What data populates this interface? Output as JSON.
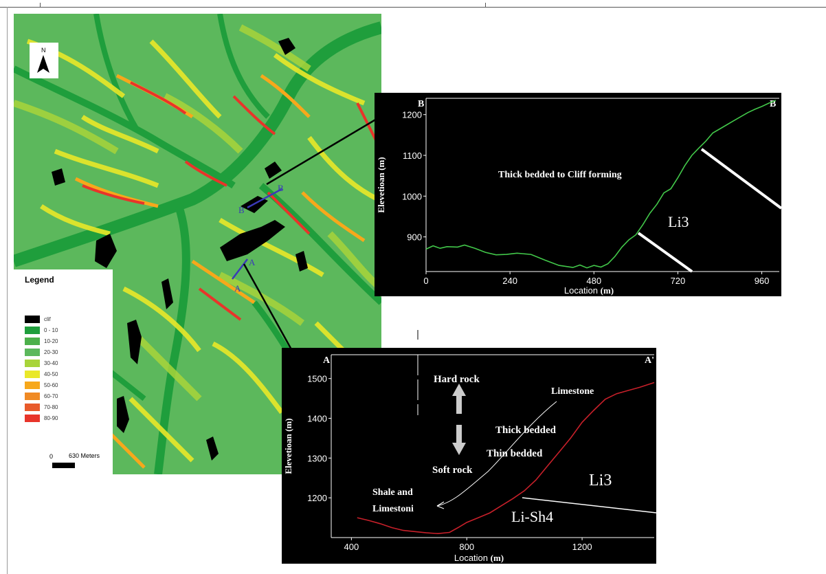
{
  "colors": {
    "cliff": "#000000",
    "green_dark": "#1f9e3c",
    "green": "#5cb85c",
    "green_light": "#8ccf3c",
    "yellow": "#e9e829",
    "orange": "#f7a81b",
    "red": "#e8342a",
    "profile_b_line": "#42c84a",
    "profile_a_line": "#c8202a",
    "section_line": "#3a3ab8"
  },
  "map": {
    "north_label": "N",
    "section_b_start": "B",
    "section_b_end": "B",
    "section_a_start": "A",
    "section_a_end": "A"
  },
  "legend": {
    "title": "Legend",
    "items": [
      {
        "label": "clif",
        "color": "#000000"
      },
      {
        "label": "0 - 10",
        "color": "#1f9e3c"
      },
      {
        "label": "10-20",
        "color": "#4cb04a"
      },
      {
        "label": "20-30",
        "color": "#5cb85c"
      },
      {
        "label": "30-40",
        "color": "#a8d43a"
      },
      {
        "label": "40-50",
        "color": "#e9e829"
      },
      {
        "label": "50-60",
        "color": "#f7a81b"
      },
      {
        "label": "60-70",
        "color": "#f08a24"
      },
      {
        "label": "70-80",
        "color": "#e85a2a"
      },
      {
        "label": "80-90",
        "color": "#e8342a"
      }
    ],
    "scale_zero": "0",
    "scale_label": "630 Meters"
  },
  "profiles": [
    {
      "id": "B",
      "start_label": "B",
      "end_label": "B",
      "ylabel": "Elevetioan",
      "ylabel_unit": "(m)",
      "xlabel": "Location",
      "xlabel_unit": "(m)",
      "x_ticks": [
        "0",
        "240",
        "480",
        "720",
        "960"
      ],
      "y_ticks": [
        "900",
        "1000",
        "1100",
        "1200"
      ],
      "annotations": {
        "bedding": "Thick bedded to Cliff forming",
        "unit": "Li3"
      }
    },
    {
      "id": "A",
      "start_label": "A",
      "end_label": "A'",
      "ylabel": "Elevetioan",
      "ylabel_unit": "(m)",
      "xlabel": "Location",
      "xlabel_unit": "(m)",
      "x_ticks": [
        "400",
        "800",
        "1200"
      ],
      "y_ticks": [
        "1200",
        "1300",
        "1400",
        "1500"
      ],
      "annotations": {
        "hard_rock": "Hard rock",
        "soft_rock": "Soft rock",
        "limestone": "Limestone",
        "thick_bedded": "Thick bedded",
        "thin_bedded": "Thin bedded",
        "shale_1": "Shale and",
        "shale_2": "Limestoni",
        "unit_li3": "Li3",
        "unit_lish4": "Li-Sh4"
      }
    }
  ],
  "chart_data": [
    {
      "type": "line",
      "title": "",
      "xlabel": "Location (m)",
      "ylabel": "Elevetioan (m)",
      "xlim": [
        0,
        1010
      ],
      "ylim": [
        815,
        1240
      ],
      "x": [
        0,
        20,
        40,
        60,
        90,
        110,
        140,
        170,
        200,
        230,
        260,
        300,
        340,
        380,
        420,
        440,
        460,
        480,
        500,
        520,
        540,
        560,
        580,
        600,
        620,
        640,
        660,
        680,
        700,
        720,
        740,
        760,
        780,
        800,
        820,
        840,
        860,
        880,
        900,
        920,
        940,
        960,
        980,
        1000
      ],
      "y": [
        870,
        878,
        872,
        876,
        875,
        880,
        872,
        862,
        856,
        857,
        860,
        857,
        843,
        830,
        825,
        831,
        824,
        830,
        826,
        834,
        852,
        875,
        893,
        905,
        930,
        958,
        980,
        1008,
        1018,
        1045,
        1075,
        1100,
        1118,
        1135,
        1155,
        1165,
        1175,
        1185,
        1195,
        1205,
        1213,
        1220,
        1228,
        1235
      ]
    },
    {
      "type": "line",
      "title": "",
      "xlabel": "Location (m)",
      "ylabel": "Elevetioan (m)",
      "xlim": [
        330,
        1450
      ],
      "ylim": [
        1100,
        1560
      ],
      "x": [
        420,
        460,
        500,
        540,
        580,
        620,
        660,
        700,
        740,
        770,
        800,
        840,
        880,
        920,
        960,
        1000,
        1040,
        1080,
        1120,
        1160,
        1200,
        1240,
        1280,
        1320,
        1360,
        1400,
        1450
      ],
      "y": [
        1150,
        1143,
        1135,
        1125,
        1118,
        1115,
        1112,
        1110,
        1113,
        1125,
        1138,
        1150,
        1162,
        1180,
        1198,
        1218,
        1245,
        1280,
        1315,
        1350,
        1390,
        1420,
        1448,
        1462,
        1470,
        1478,
        1490
      ]
    }
  ]
}
